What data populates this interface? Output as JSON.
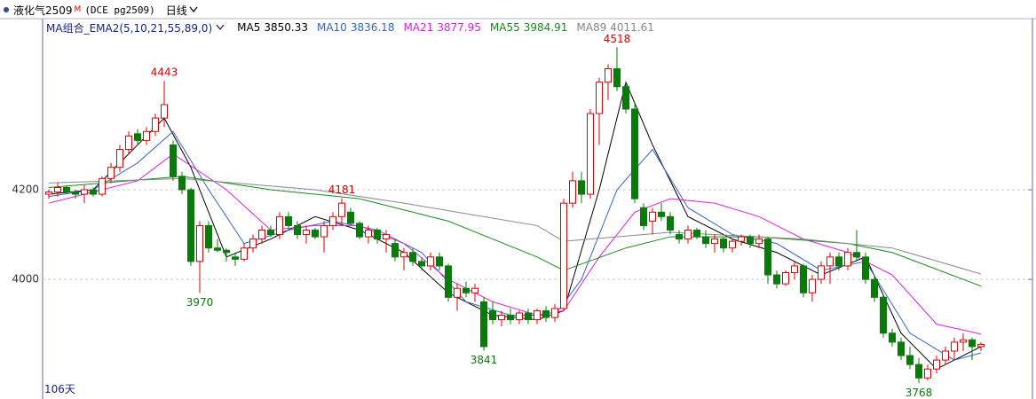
{
  "header": {
    "symbol": "液化气2509",
    "flag": "M",
    "code": "(DCE pg2509)",
    "period": "日线"
  },
  "chart_data": {
    "type": "candlestick",
    "legend_title": "MA组合_EMA2(5,10,21,55,89,0)",
    "footer": "106天",
    "up_color": "#e00000",
    "down_color": "#0a7a0a",
    "ylim": [
      3743,
      4564
    ],
    "yticks": [
      4000,
      4200
    ],
    "grid": true,
    "high_labels": [
      13,
      33,
      64
    ],
    "low_labels": [
      17,
      49,
      98
    ],
    "ohlc": [
      [
        4190,
        4200,
        4180,
        4195
      ],
      [
        4195,
        4215,
        4185,
        4205
      ],
      [
        4205,
        4210,
        4190,
        4195
      ],
      [
        4195,
        4200,
        4180,
        4190
      ],
      [
        4190,
        4210,
        4170,
        4200
      ],
      [
        4200,
        4205,
        4185,
        4190
      ],
      [
        4190,
        4230,
        4185,
        4225
      ],
      [
        4225,
        4260,
        4215,
        4250
      ],
      [
        4250,
        4300,
        4240,
        4290
      ],
      [
        4290,
        4330,
        4280,
        4320
      ],
      [
        4325,
        4335,
        4300,
        4310
      ],
      [
        4310,
        4340,
        4300,
        4330
      ],
      [
        4330,
        4370,
        4320,
        4360
      ],
      [
        4360,
        4443,
        4340,
        4390
      ],
      [
        4300,
        4310,
        4220,
        4230
      ],
      [
        4230,
        4240,
        4190,
        4200
      ],
      [
        4200,
        4205,
        4030,
        4040
      ],
      [
        4040,
        4130,
        3970,
        4120
      ],
      [
        4120,
        4130,
        4060,
        4070
      ],
      [
        4070,
        4090,
        4060,
        4065
      ],
      [
        4065,
        4070,
        4040,
        4060
      ],
      [
        4050,
        4060,
        4030,
        4045
      ],
      [
        4045,
        4080,
        4040,
        4070
      ],
      [
        4070,
        4100,
        4060,
        4090
      ],
      [
        4090,
        4120,
        4080,
        4110
      ],
      [
        4110,
        4120,
        4095,
        4100
      ],
      [
        4100,
        4150,
        4090,
        4140
      ],
      [
        4140,
        4150,
        4110,
        4120
      ],
      [
        4120,
        4130,
        4090,
        4100
      ],
      [
        4100,
        4120,
        4080,
        4110
      ],
      [
        4110,
        4115,
        4090,
        4095
      ],
      [
        4095,
        4130,
        4060,
        4120
      ],
      [
        4120,
        4150,
        4110,
        4140
      ],
      [
        4140,
        4181,
        4120,
        4170
      ],
      [
        4150,
        4160,
        4120,
        4125
      ],
      [
        4125,
        4130,
        4090,
        4095
      ],
      [
        4095,
        4120,
        4080,
        4110
      ],
      [
        4110,
        4115,
        4080,
        4090
      ],
      [
        4090,
        4110,
        4060,
        4100
      ],
      [
        4080,
        4090,
        4040,
        4050
      ],
      [
        4050,
        4070,
        4020,
        4060
      ],
      [
        4060,
        4070,
        4030,
        4040
      ],
      [
        4040,
        4050,
        4020,
        4030
      ],
      [
        4030,
        4060,
        4020,
        4050
      ],
      [
        4050,
        4060,
        4020,
        4030
      ],
      [
        4030,
        4035,
        3950,
        3960
      ],
      [
        3960,
        3990,
        3930,
        3980
      ],
      [
        3980,
        3995,
        3960,
        3970
      ],
      [
        3970,
        3990,
        3950,
        3980
      ],
      [
        3950,
        3960,
        3841,
        3850
      ],
      [
        3930,
        3950,
        3900,
        3910
      ],
      [
        3910,
        3930,
        3895,
        3920
      ],
      [
        3920,
        3935,
        3900,
        3910
      ],
      [
        3910,
        3930,
        3900,
        3925
      ],
      [
        3925,
        3935,
        3900,
        3910
      ],
      [
        3910,
        3935,
        3900,
        3930
      ],
      [
        3930,
        3940,
        3905,
        3915
      ],
      [
        3915,
        3945,
        3905,
        3935
      ],
      [
        3935,
        4180,
        3930,
        4170
      ],
      [
        4170,
        4240,
        4160,
        4220
      ],
      [
        4220,
        4240,
        4170,
        4190
      ],
      [
        4190,
        4380,
        4180,
        4370
      ],
      [
        4370,
        4450,
        4300,
        4440
      ],
      [
        4440,
        4480,
        4400,
        4470
      ],
      [
        4470,
        4518,
        4420,
        4430
      ],
      [
        4430,
        4440,
        4370,
        4380
      ],
      [
        4380,
        4390,
        4170,
        4180
      ],
      [
        4160,
        4170,
        4110,
        4120
      ],
      [
        4130,
        4160,
        4100,
        4150
      ],
      [
        4150,
        4170,
        4130,
        4140
      ],
      [
        4140,
        4150,
        4100,
        4110
      ],
      [
        4100,
        4110,
        4080,
        4090
      ],
      [
        4090,
        4120,
        4080,
        4110
      ],
      [
        4110,
        4115,
        4090,
        4095
      ],
      [
        4095,
        4110,
        4070,
        4080
      ],
      [
        4080,
        4100,
        4060,
        4090
      ],
      [
        4090,
        4095,
        4060,
        4070
      ],
      [
        4070,
        4090,
        4060,
        4085
      ],
      [
        4085,
        4100,
        4075,
        4095
      ],
      [
        4095,
        4100,
        4070,
        4080
      ],
      [
        4080,
        4100,
        4070,
        4090
      ],
      [
        4090,
        4095,
        3990,
        4010
      ],
      [
        4010,
        4020,
        3980,
        3990
      ],
      [
        3990,
        4020,
        3985,
        4015
      ],
      [
        4015,
        4040,
        4000,
        4030
      ],
      [
        4030,
        4035,
        3960,
        3970
      ],
      [
        3970,
        4010,
        3950,
        4000
      ],
      [
        4000,
        4040,
        3990,
        4030
      ],
      [
        4030,
        4060,
        3990,
        4050
      ],
      [
        4050,
        4060,
        4020,
        4030
      ],
      [
        4030,
        4070,
        4020,
        4060
      ],
      [
        4060,
        4110,
        4040,
        4050
      ],
      [
        4050,
        4060,
        3990,
        4000
      ],
      [
        4000,
        4010,
        3950,
        3960
      ],
      [
        3960,
        3965,
        3870,
        3880
      ],
      [
        3880,
        3890,
        3850,
        3860
      ],
      [
        3860,
        3870,
        3820,
        3830
      ],
      [
        3830,
        3850,
        3800,
        3810
      ],
      [
        3810,
        3825,
        3768,
        3780
      ],
      [
        3780,
        3810,
        3775,
        3800
      ],
      [
        3800,
        3830,
        3790,
        3820
      ],
      [
        3820,
        3850,
        3810,
        3840
      ],
      [
        3840,
        3870,
        3820,
        3860
      ],
      [
        3860,
        3880,
        3840,
        3865
      ],
      [
        3865,
        3870,
        3820,
        3850
      ],
      [
        3850,
        3860,
        3840,
        3855
      ]
    ],
    "series": [
      {
        "name": "MA5",
        "color": "#000000",
        "last": 3850.33,
        "x": [
          0,
          5,
          10,
          13,
          16,
          20,
          25,
          30,
          35,
          40,
          45,
          50,
          55,
          58,
          62,
          65,
          68,
          72,
          77,
          82,
          87,
          92,
          96,
          100,
          105
        ],
        "values": [
          4190,
          4200,
          4300,
          4360,
          4250,
          4050,
          4090,
          4140,
          4110,
          4060,
          3970,
          3920,
          3910,
          3930,
          4200,
          4440,
          4300,
          4140,
          4090,
          4060,
          4010,
          4050,
          3880,
          3800,
          3850
        ]
      },
      {
        "name": "MA10",
        "color": "#3366cc",
        "last": 3836.18,
        "x": [
          0,
          5,
          10,
          14,
          18,
          22,
          27,
          32,
          37,
          42,
          47,
          52,
          57,
          60,
          64,
          68,
          72,
          77,
          82,
          87,
          92,
          97,
          102,
          105
        ],
        "values": [
          4185,
          4200,
          4260,
          4330,
          4200,
          4080,
          4110,
          4130,
          4110,
          4060,
          3950,
          3920,
          3920,
          4000,
          4200,
          4290,
          4160,
          4100,
          4080,
          4020,
          4040,
          3880,
          3820,
          3836
        ]
      },
      {
        "name": "MA21",
        "color": "#e020e0",
        "last": 3877.95,
        "x": [
          0,
          10,
          14,
          20,
          25,
          30,
          35,
          40,
          45,
          50,
          55,
          58,
          62,
          66,
          70,
          75,
          80,
          85,
          90,
          95,
          100,
          105
        ],
        "values": [
          4170,
          4220,
          4280,
          4200,
          4110,
          4120,
          4120,
          4080,
          4000,
          3950,
          3920,
          3930,
          4050,
          4150,
          4180,
          4170,
          4140,
          4090,
          4060,
          4010,
          3900,
          3878
        ]
      },
      {
        "name": "MA55",
        "color": "#1a8a1a",
        "last": 3984.91,
        "x": [
          0,
          15,
          25,
          35,
          45,
          55,
          58,
          65,
          70,
          80,
          90,
          95,
          105
        ],
        "values": [
          4205,
          4230,
          4200,
          4180,
          4130,
          4050,
          4020,
          4070,
          4095,
          4095,
          4080,
          4060,
          3985
        ]
      },
      {
        "name": "MA89",
        "color": "#888888",
        "last": 4011.61,
        "x": [
          0,
          15,
          30,
          40,
          55,
          58,
          70,
          85,
          95,
          105
        ],
        "values": [
          4215,
          4225,
          4200,
          4170,
          4120,
          4085,
          4105,
          4090,
          4070,
          4012
        ]
      }
    ]
  }
}
